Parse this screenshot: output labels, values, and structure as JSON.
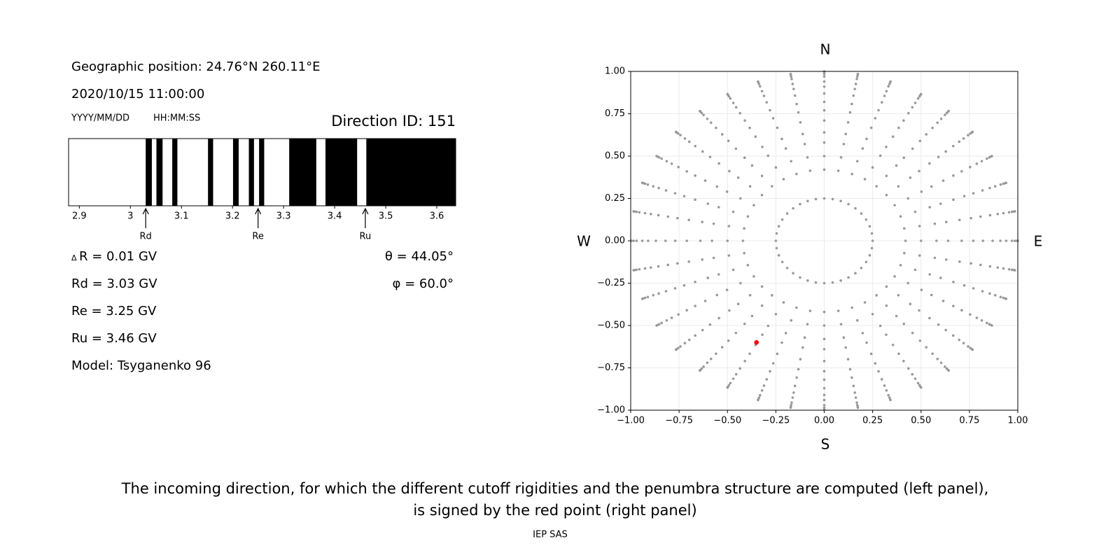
{
  "chart_data": [
    {
      "type": "penumbra",
      "position": "Geographic position: 24.76°N 260.11°E",
      "datetime": "2020/10/15 11:00:00",
      "date_format": "YYYY/MM/DD",
      "time_format": "HH:MM:SS",
      "direction": "Direction ID: 151",
      "delta_symbol": "Δ",
      "delta_text": "R = 0.01 GV",
      "theta": "θ = 44.05°",
      "phi": "φ = 60.0°",
      "model": "Model: Tsyganenko 96",
      "xlim": [
        2.879,
        3.637
      ],
      "xticks": [
        2.9,
        3.0,
        3.1,
        3.2,
        3.3,
        3.4,
        3.5,
        3.6
      ],
      "color": "#000000",
      "bands": [
        [
          3.03,
          3.042
        ],
        [
          3.051,
          3.063
        ],
        [
          3.082,
          3.092
        ],
        [
          3.152,
          3.162
        ],
        [
          3.201,
          3.212
        ],
        [
          3.232,
          3.242
        ],
        [
          3.252,
          3.262
        ],
        [
          3.311,
          3.364
        ],
        [
          3.382,
          3.444
        ],
        [
          3.462,
          3.637
        ]
      ],
      "cutoffs": [
        {
          "name": "Rd",
          "value": 3.03,
          "label": "Rd = 3.03 GV"
        },
        {
          "name": "Re",
          "value": 3.25,
          "label": "Re = 3.25 GV"
        },
        {
          "name": "Ru",
          "value": 3.46,
          "label": "Ru = 3.46 GV"
        }
      ]
    },
    {
      "type": "scatter",
      "xlim": [
        -1,
        1
      ],
      "ylim": [
        -1,
        1
      ],
      "xticks": [
        {
          "value": -1,
          "label": "−1.00"
        },
        {
          "value": -0.75,
          "label": "−0.75"
        },
        {
          "value": -0.5,
          "label": "−0.50"
        },
        {
          "value": -0.25,
          "label": "−0.25"
        },
        {
          "value": 0,
          "label": "0.00"
        },
        {
          "value": 0.25,
          "label": "0.25"
        },
        {
          "value": 0.5,
          "label": "0.50"
        },
        {
          "value": 0.75,
          "label": "0.75"
        },
        {
          "value": 1,
          "label": "1.00"
        }
      ],
      "yticks": [
        {
          "value": -1,
          "label": "−1.00"
        },
        {
          "value": -0.75,
          "label": "−0.75"
        },
        {
          "value": -0.5,
          "label": "−0.50"
        },
        {
          "value": -0.25,
          "label": "−0.25"
        },
        {
          "value": 0,
          "label": "0.00"
        },
        {
          "value": 0.25,
          "label": "0.25"
        },
        {
          "value": 0.5,
          "label": "0.50"
        },
        {
          "value": 0.75,
          "label": "0.75"
        },
        {
          "value": 1,
          "label": "1.00"
        }
      ],
      "grid": true,
      "compass": {
        "n": "N",
        "s": "S",
        "e": "E",
        "w": "W"
      },
      "series": [
        {
          "color": "#999999",
          "radii": [
            0.25,
            0.42,
            0.5,
            0.58,
            0.64,
            0.71,
            0.77,
            0.82,
            0.87,
            0.91,
            0.94,
            0.97,
            0.985,
            0.996,
            1
          ],
          "azimuths": [
            0,
            10,
            20,
            30,
            40,
            50,
            60,
            70,
            80,
            90,
            100,
            110,
            120,
            130,
            140,
            150,
            160,
            170,
            180,
            190,
            200,
            210,
            220,
            230,
            240,
            250,
            260,
            270,
            280,
            290,
            300,
            310,
            320,
            330,
            340,
            350
          ]
        },
        {
          "color": "#ff0000",
          "x": [
            -0.35
          ],
          "y": [
            -0.6
          ]
        }
      ]
    }
  ],
  "caption": [
    "The incoming direction, for which the different cutoff rigidities and the penumbra structure are computed (left panel),",
    "is signed by the red point (right panel)"
  ],
  "footer": "IEP SAS"
}
